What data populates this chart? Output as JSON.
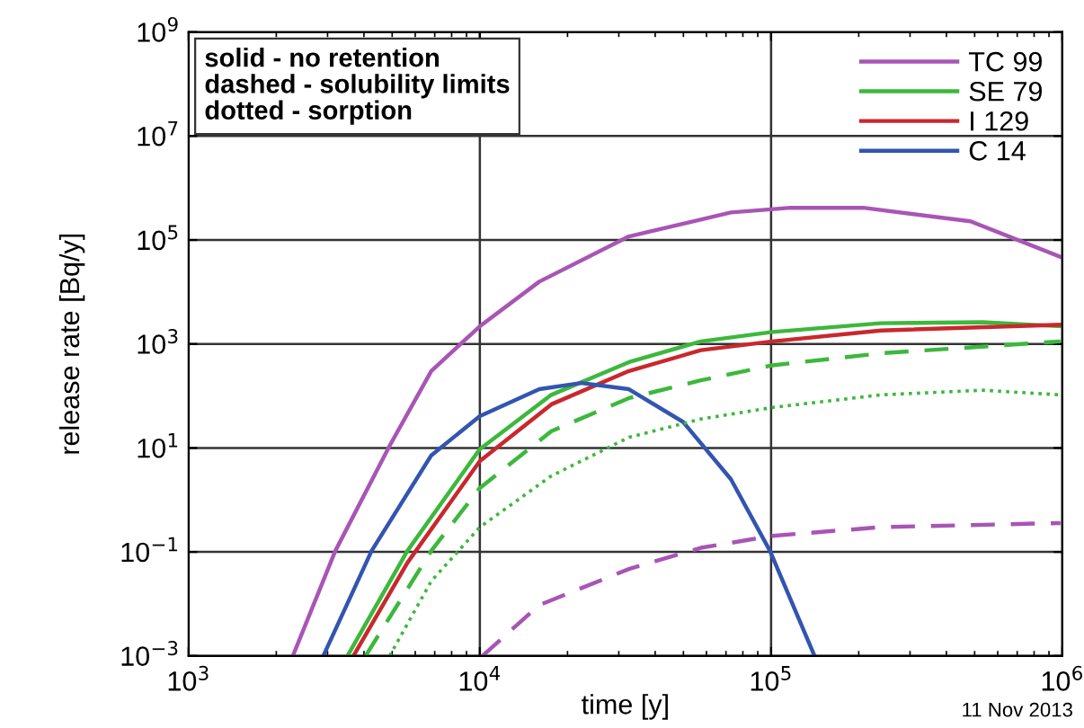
{
  "chart_data": {
    "type": "line",
    "xlabel": "time [y]",
    "ylabel": "release rate [Bq/y]",
    "log": "xy",
    "xlim": [
      1000,
      1000000
    ],
    "ylim": [
      0.001,
      1000000000
    ],
    "xticks": [
      {
        "value": 1000,
        "label": "10$^{3}$"
      },
      {
        "value": 10000,
        "label": "10$^{4}$"
      },
      {
        "value": 100000,
        "label": "10$^{5}$"
      },
      {
        "value": 1000000,
        "label": "10$^{6}$"
      }
    ],
    "yticks": [
      {
        "value": 0.001,
        "label": "10$^{−3}$"
      },
      {
        "value": 0.1,
        "label": "10$^{−1}$"
      },
      {
        "value": 10,
        "label": "10$^{1}$"
      },
      {
        "value": 1000,
        "label": "10$^{3}$"
      },
      {
        "value": 100000,
        "label": "10$^{5}$"
      },
      {
        "value": 10000000,
        "label": "10$^{7}$"
      },
      {
        "value": 1000000000,
        "label": "10$^{9}$"
      }
    ],
    "grid": true,
    "legend": "top right",
    "annotations": [
      "solid - no retention\ndashed - solubility limits\ndotted - sorption",
      "11 Nov 2013"
    ],
    "series": [
      {
        "name": "TC 99",
        "color": "#a855b5",
        "line_style": "solid",
        "x": [
          2280,
          3190,
          4900,
          6810,
          10000,
          16000,
          32500,
          72800,
          117000,
          207000,
          484000,
          990000
        ],
        "values": [
          0.001,
          0.105,
          11,
          302,
          2190,
          15800,
          117000,
          339000,
          417000,
          417000,
          229000,
          46800
        ]
      },
      {
        "name": "SE 79",
        "color": "#3cb83c",
        "line_style": "solid",
        "x": [
          3510,
          5640,
          10000,
          17600,
          32500,
          57400,
          101000,
          238000,
          533000,
          986000
        ],
        "values": [
          0.001,
          0.105,
          9.5,
          105,
          447,
          1120,
          1700,
          2510,
          2630,
          2190
        ]
      },
      {
        "name": "I 129",
        "color": "#c8282d",
        "line_style": "solid",
        "x": [
          3680,
          5640,
          10000,
          17600,
          32500,
          57400,
          101000,
          238000,
          986000
        ],
        "values": [
          0.001,
          0.062,
          5.6,
          69,
          302,
          759,
          1120,
          1820,
          2340
        ]
      },
      {
        "name": "C 14",
        "color": "#3355b0",
        "line_style": "solid",
        "x": [
          2900,
          4250,
          6810,
          10000,
          16000,
          22300,
          32500,
          49900,
          72800,
          99100,
          141000
        ],
        "values": [
          0.001,
          0.105,
          7.2,
          41,
          135,
          178,
          135,
          31.6,
          2.5,
          0.105,
          0.001
        ]
      },
      {
        "color": "#3cb83c",
        "line_style": "dashed",
        "x": [
          4050,
          6810,
          10000,
          17600,
          32500,
          57400,
          101000,
          238000,
          986000
        ],
        "values": [
          0.001,
          0.105,
          1.7,
          21,
          91,
          200,
          389,
          661,
          1120
        ]
      },
      {
        "color": "#3cb83c",
        "line_style": "dotted",
        "x": [
          4900,
          6810,
          10000,
          17600,
          32500,
          57400,
          101000,
          238000,
          533000,
          986000
        ],
        "values": [
          0.001,
          0.0275,
          0.3,
          2.9,
          16,
          36,
          60,
          105,
          129,
          105
        ]
      },
      {
        "color": "#a855b5",
        "line_style": "dashed",
        "x": [
          10200,
          16000,
          32500,
          57400,
          101000,
          238000,
          986000
        ],
        "values": [
          0.001,
          0.0095,
          0.047,
          0.12,
          0.204,
          0.3,
          0.36
        ]
      }
    ]
  }
}
